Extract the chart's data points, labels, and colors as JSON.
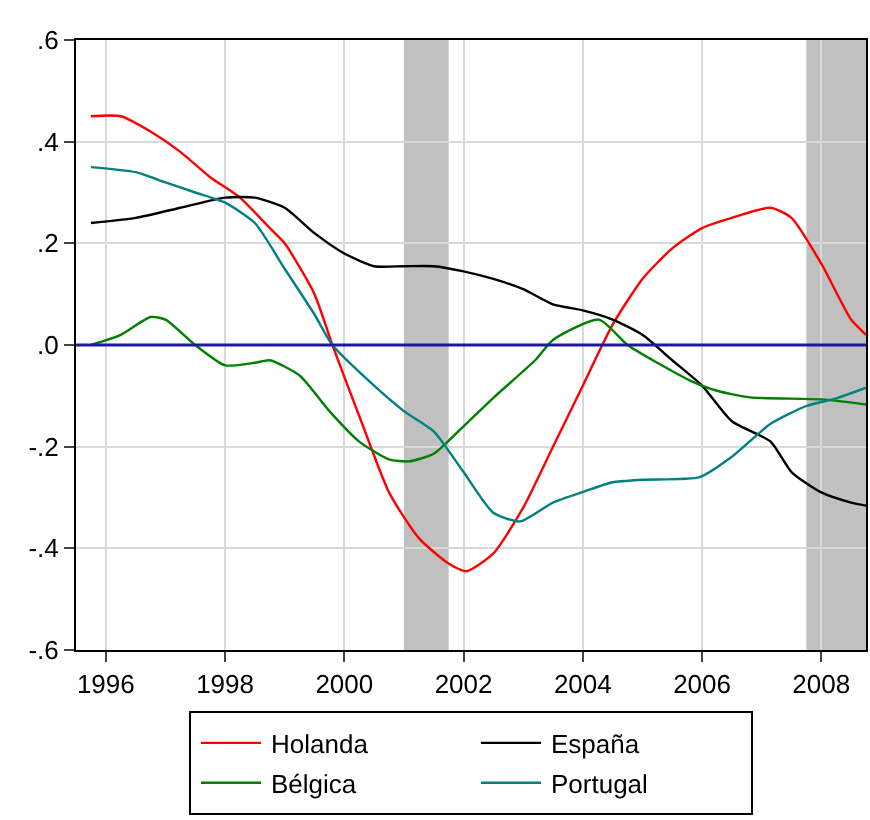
{
  "chart_data": {
    "type": "line",
    "xlim": [
      1995.5,
      2008.75
    ],
    "ylim": [
      -0.6,
      0.6
    ],
    "xticks": [
      1996,
      1998,
      2000,
      2002,
      2004,
      2006,
      2008
    ],
    "yticks": [
      {
        "value": -0.6,
        "label": "-.6"
      },
      {
        "value": -0.4,
        "label": "-.4"
      },
      {
        "value": -0.2,
        "label": "-.2"
      },
      {
        "value": 0,
        "label": ".0"
      },
      {
        "value": 0.2,
        "label": ".2"
      },
      {
        "value": 0.4,
        "label": ".4"
      },
      {
        "value": 0.6,
        "label": ".6"
      }
    ],
    "grid": true,
    "legend": "bottom",
    "marker": "none",
    "line_style": "solid",
    "ref_lines": [
      {
        "axis": "y",
        "value": 0,
        "color": "#1a1a9e"
      }
    ],
    "bands": [
      {
        "axis": "x",
        "from": 2001.0,
        "to": 2001.75,
        "color": "#c0c0c0"
      },
      {
        "axis": "x",
        "from": 2007.75,
        "to": 2008.75,
        "color": "#c0c0c0"
      }
    ],
    "series": [
      {
        "name": "Holanda",
        "color": "#ff0000",
        "x": [
          1995.75,
          1996.25,
          1996.75,
          1997.25,
          1997.75,
          1998.25,
          1998.75,
          1999.0,
          1999.5,
          1999.8,
          2000.3,
          2000.75,
          2001.25,
          2001.75,
          2002.05,
          2002.5,
          2003.0,
          2003.5,
          2004.0,
          2004.5,
          2005.0,
          2005.5,
          2006.0,
          2006.5,
          2007.15,
          2007.5,
          2008.0,
          2008.5,
          2008.75
        ],
        "values": [
          0.45,
          0.45,
          0.42,
          0.38,
          0.33,
          0.29,
          0.23,
          0.2,
          0.1,
          0.0,
          -0.155,
          -0.29,
          -0.38,
          -0.43,
          -0.445,
          -0.41,
          -0.32,
          -0.2,
          -0.08,
          0.04,
          0.13,
          0.19,
          0.23,
          0.25,
          0.27,
          0.25,
          0.16,
          0.05,
          0.02
        ]
      },
      {
        "name": "España",
        "color": "#000000",
        "x": [
          1995.75,
          1996.5,
          1997.25,
          1998.0,
          1998.5,
          1999.0,
          1999.5,
          2000.0,
          2000.5,
          2001.0,
          2001.5,
          2002.0,
          2002.5,
          2003.0,
          2003.5,
          2004.0,
          2004.5,
          2005.0,
          2005.5,
          2006.0,
          2006.5,
          2007.15,
          2007.5,
          2008.0,
          2008.5,
          2008.75
        ],
        "values": [
          0.24,
          0.25,
          0.27,
          0.29,
          0.29,
          0.27,
          0.22,
          0.18,
          0.155,
          0.155,
          0.155,
          0.145,
          0.13,
          0.11,
          0.08,
          0.068,
          0.05,
          0.02,
          -0.03,
          -0.08,
          -0.15,
          -0.19,
          -0.25,
          -0.29,
          -0.31,
          -0.316
        ]
      },
      {
        "name": "Bélgica",
        "color": "#008000",
        "x": [
          1995.75,
          1996.25,
          1996.75,
          1997.0,
          1997.5,
          1998.0,
          1998.5,
          1998.75,
          1999.25,
          1999.75,
          2000.25,
          2000.75,
          2001.08,
          2001.5,
          2002.0,
          2002.5,
          2003.2,
          2003.5,
          2004.27,
          2004.75,
          2005.25,
          2005.8,
          2006.25,
          2006.8,
          2008.0,
          2008.75
        ],
        "values": [
          0.0,
          0.02,
          0.055,
          0.05,
          0.0,
          -0.04,
          -0.035,
          -0.03,
          -0.06,
          -0.13,
          -0.19,
          -0.225,
          -0.229,
          -0.214,
          -0.16,
          -0.104,
          -0.03,
          0.01,
          0.05,
          0.0,
          -0.035,
          -0.07,
          -0.09,
          -0.103,
          -0.107,
          -0.117
        ]
      },
      {
        "name": "Portugal",
        "color": "#008080",
        "x": [
          1995.75,
          1996.5,
          1997.0,
          1997.5,
          1998.0,
          1998.5,
          1999.0,
          1999.5,
          1999.8,
          2000.5,
          2001.0,
          2001.5,
          2002.0,
          2002.5,
          2002.95,
          2003.5,
          2004.03,
          2004.5,
          2005.0,
          2005.96,
          2006.5,
          2007.15,
          2007.75,
          2008.28,
          2008.75
        ],
        "values": [
          0.35,
          0.34,
          0.32,
          0.3,
          0.28,
          0.24,
          0.15,
          0.06,
          0.0,
          -0.08,
          -0.13,
          -0.17,
          -0.25,
          -0.33,
          -0.347,
          -0.31,
          -0.288,
          -0.27,
          -0.265,
          -0.26,
          -0.22,
          -0.155,
          -0.12,
          -0.104,
          -0.084
        ]
      }
    ]
  }
}
